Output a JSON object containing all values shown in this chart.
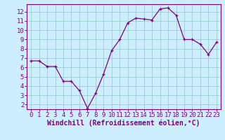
{
  "x": [
    0,
    1,
    2,
    3,
    4,
    5,
    6,
    7,
    8,
    9,
    10,
    11,
    12,
    13,
    14,
    15,
    16,
    17,
    18,
    19,
    20,
    21,
    22,
    23
  ],
  "y": [
    6.7,
    6.7,
    6.1,
    6.1,
    4.5,
    4.5,
    3.5,
    1.6,
    3.2,
    5.3,
    7.8,
    9.0,
    10.8,
    11.3,
    11.2,
    11.1,
    12.3,
    12.4,
    11.6,
    9.0,
    9.0,
    8.5,
    7.4,
    8.7
  ],
  "line_color": "#800080",
  "marker": "+",
  "bg_color": "#cceeff",
  "grid_color": "#99cccc",
  "axis_color": "#800080",
  "xlabel": "Windchill (Refroidissement éolien,°C)",
  "ylim": [
    1.5,
    12.8
  ],
  "xlim": [
    -0.5,
    23.5
  ],
  "yticks": [
    2,
    3,
    4,
    5,
    6,
    7,
    8,
    9,
    10,
    11,
    12
  ],
  "xticks": [
    0,
    1,
    2,
    3,
    4,
    5,
    6,
    7,
    8,
    9,
    10,
    11,
    12,
    13,
    14,
    15,
    16,
    17,
    18,
    19,
    20,
    21,
    22,
    23
  ],
  "tick_fontsize": 6.5,
  "xlabel_fontsize": 7.0,
  "marker_size": 3,
  "linewidth": 0.9
}
